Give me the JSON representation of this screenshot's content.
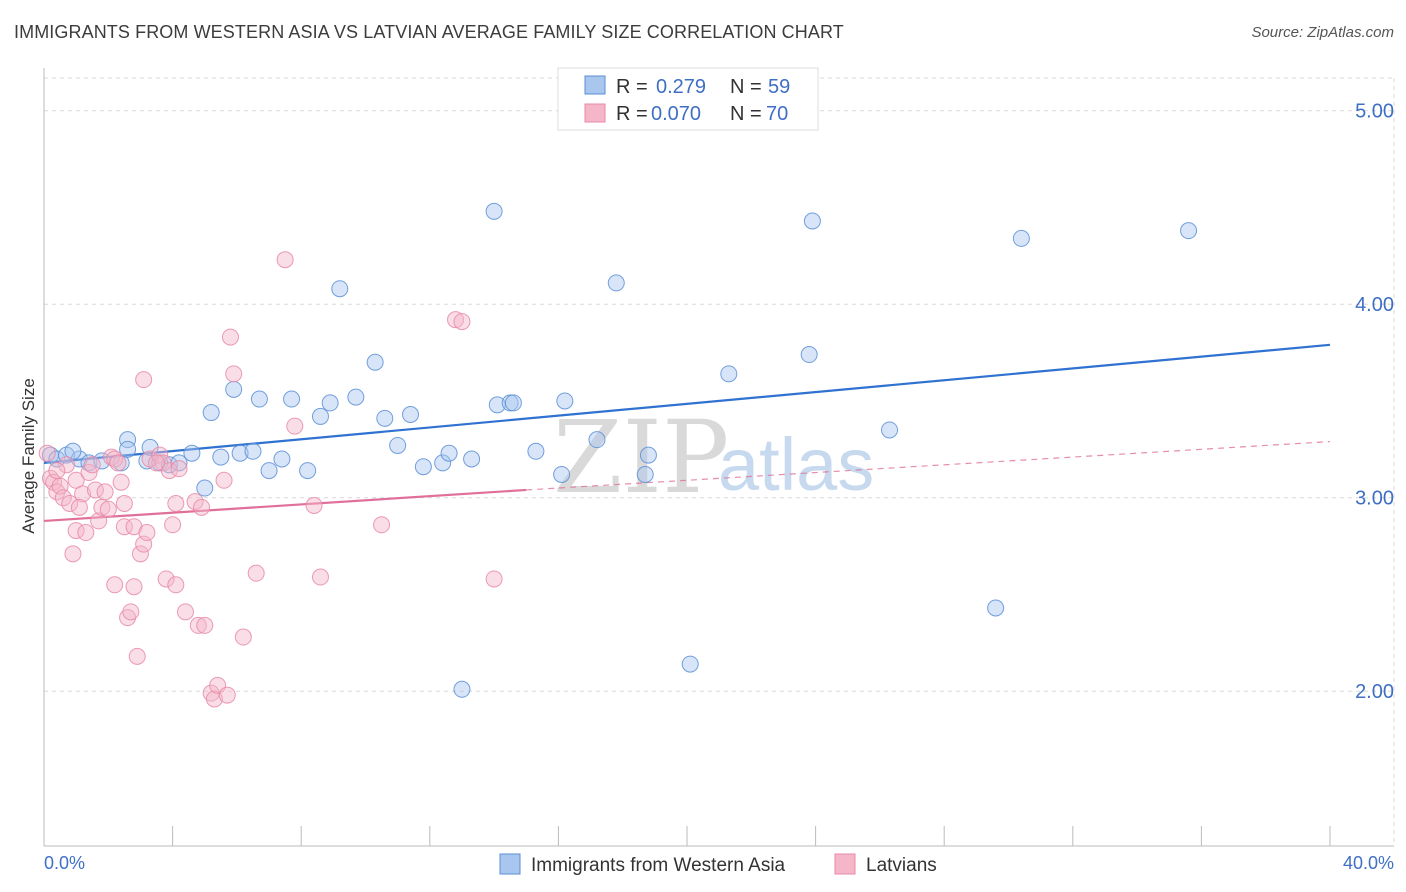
{
  "title": "IMMIGRANTS FROM WESTERN ASIA VS LATVIAN AVERAGE FAMILY SIZE CORRELATION CHART",
  "source": "Source: ZipAtlas.com",
  "watermark": {
    "zip": "ZIP",
    "atlas": "atlas"
  },
  "colors": {
    "blue_fill": "#a9c6ef",
    "blue_stroke": "#5b8fd6",
    "blue_line": "#2f72d1",
    "pink_fill": "#f5b6c9",
    "pink_stroke": "#e78aa6",
    "pink_line": "#e0709a",
    "value_text": "#3f6fc5",
    "grid": "#d8d8d8"
  },
  "legend": {
    "r_label": "R =",
    "n_label": "N =",
    "items": [
      {
        "series": "blue",
        "r": "0.279",
        "n": "59"
      },
      {
        "series": "pink",
        "r": "0.070",
        "n": "70"
      }
    ]
  },
  "chart_data": {
    "type": "scatter",
    "xlabel": "",
    "ylabel": "Average Family Size",
    "xlim": [
      0,
      40
    ],
    "ylim": [
      1.2,
      5.2
    ],
    "x_tick_labels": [
      "0.0%",
      "40.0%"
    ],
    "y_ticks": [
      2,
      3,
      4,
      5
    ],
    "y_tick_labels": [
      "2.00",
      "3.00",
      "4.00",
      "5.00"
    ],
    "legend_position": "top-center",
    "series": [
      {
        "name": "Immigrants from Western Asia",
        "color": "blue",
        "trend": {
          "x": [
            0,
            40
          ],
          "y": [
            3.18,
            3.79
          ]
        },
        "points": [
          [
            0.2,
            3.22
          ],
          [
            0.4,
            3.2
          ],
          [
            0.7,
            3.22
          ],
          [
            1.1,
            3.2
          ],
          [
            1.4,
            3.18
          ],
          [
            1.8,
            3.19
          ],
          [
            2.4,
            3.18
          ],
          [
            2.6,
            3.3
          ],
          [
            2.6,
            3.25
          ],
          [
            3.2,
            3.19
          ],
          [
            3.3,
            3.26
          ],
          [
            3.6,
            3.18
          ],
          [
            3.9,
            3.17
          ],
          [
            4.2,
            3.18
          ],
          [
            4.6,
            3.23
          ],
          [
            5.0,
            3.05
          ],
          [
            5.2,
            3.44
          ],
          [
            5.5,
            3.21
          ],
          [
            5.9,
            3.56
          ],
          [
            6.1,
            3.23
          ],
          [
            6.5,
            3.24
          ],
          [
            6.7,
            3.51
          ],
          [
            7.0,
            3.14
          ],
          [
            7.4,
            3.2
          ],
          [
            7.7,
            3.51
          ],
          [
            8.2,
            3.14
          ],
          [
            8.6,
            3.42
          ],
          [
            8.9,
            3.49
          ],
          [
            9.2,
            4.08
          ],
          [
            9.7,
            3.52
          ],
          [
            10.3,
            3.7
          ],
          [
            10.6,
            3.41
          ],
          [
            11.0,
            3.27
          ],
          [
            11.4,
            3.43
          ],
          [
            11.8,
            3.16
          ],
          [
            12.4,
            3.18
          ],
          [
            12.6,
            3.23
          ],
          [
            13.0,
            2.01
          ],
          [
            13.3,
            3.2
          ],
          [
            14.0,
            4.48
          ],
          [
            14.1,
            3.48
          ],
          [
            14.5,
            3.49
          ],
          [
            14.6,
            3.49
          ],
          [
            15.3,
            3.24
          ],
          [
            16.1,
            3.12
          ],
          [
            16.2,
            3.5
          ],
          [
            17.2,
            3.3
          ],
          [
            17.8,
            4.11
          ],
          [
            18.7,
            3.12
          ],
          [
            18.8,
            3.22
          ],
          [
            20.1,
            2.14
          ],
          [
            21.3,
            3.64
          ],
          [
            23.8,
            3.74
          ],
          [
            23.9,
            4.43
          ],
          [
            26.3,
            3.35
          ],
          [
            29.6,
            2.43
          ],
          [
            30.4,
            4.34
          ],
          [
            35.6,
            4.38
          ],
          [
            0.9,
            3.24
          ]
        ]
      },
      {
        "name": "Latvians",
        "color": "pink",
        "trend": {
          "x": [
            0,
            15
          ],
          "y": [
            2.88,
            3.04
          ]
        },
        "trend_extension": {
          "x": [
            15,
            40
          ],
          "y": [
            3.04,
            3.29
          ]
        },
        "points": [
          [
            0.1,
            3.23
          ],
          [
            0.2,
            3.1
          ],
          [
            0.3,
            3.08
          ],
          [
            0.4,
            3.03
          ],
          [
            0.5,
            3.06
          ],
          [
            0.6,
            3.0
          ],
          [
            0.7,
            3.17
          ],
          [
            0.8,
            2.97
          ],
          [
            0.9,
            2.71
          ],
          [
            1.0,
            2.83
          ],
          [
            1.0,
            3.09
          ],
          [
            1.2,
            3.02
          ],
          [
            1.3,
            2.82
          ],
          [
            1.4,
            3.13
          ],
          [
            1.5,
            3.17
          ],
          [
            1.6,
            3.04
          ],
          [
            1.7,
            2.88
          ],
          [
            1.8,
            2.95
          ],
          [
            1.9,
            3.03
          ],
          [
            2.0,
            2.94
          ],
          [
            2.1,
            3.21
          ],
          [
            2.2,
            3.2
          ],
          [
            2.3,
            3.18
          ],
          [
            2.4,
            3.08
          ],
          [
            2.5,
            2.97
          ],
          [
            2.2,
            2.55
          ],
          [
            2.5,
            2.85
          ],
          [
            2.6,
            2.38
          ],
          [
            2.7,
            2.41
          ],
          [
            2.8,
            2.54
          ],
          [
            2.8,
            2.85
          ],
          [
            2.9,
            2.18
          ],
          [
            3.0,
            2.71
          ],
          [
            3.1,
            2.76
          ],
          [
            3.1,
            3.61
          ],
          [
            3.2,
            2.82
          ],
          [
            3.3,
            3.2
          ],
          [
            3.6,
            3.22
          ],
          [
            3.7,
            3.18
          ],
          [
            3.8,
            2.58
          ],
          [
            3.9,
            3.14
          ],
          [
            4.0,
            2.86
          ],
          [
            4.1,
            2.55
          ],
          [
            4.2,
            3.15
          ],
          [
            4.4,
            2.41
          ],
          [
            4.7,
            2.98
          ],
          [
            4.8,
            2.34
          ],
          [
            4.9,
            2.95
          ],
          [
            5.0,
            2.34
          ],
          [
            5.2,
            1.99
          ],
          [
            5.3,
            1.96
          ],
          [
            5.4,
            2.03
          ],
          [
            5.6,
            3.09
          ],
          [
            5.7,
            1.98
          ],
          [
            5.8,
            3.83
          ],
          [
            5.9,
            3.64
          ],
          [
            6.2,
            2.28
          ],
          [
            6.6,
            2.61
          ],
          [
            7.5,
            4.23
          ],
          [
            7.8,
            3.37
          ],
          [
            8.4,
            2.96
          ],
          [
            8.6,
            2.59
          ],
          [
            10.5,
            2.86
          ],
          [
            12.8,
            3.92
          ],
          [
            13.0,
            3.91
          ],
          [
            14.0,
            2.58
          ],
          [
            4.1,
            2.97
          ],
          [
            1.1,
            2.95
          ],
          [
            0.4,
            3.14
          ],
          [
            3.5,
            3.18
          ]
        ]
      }
    ]
  }
}
